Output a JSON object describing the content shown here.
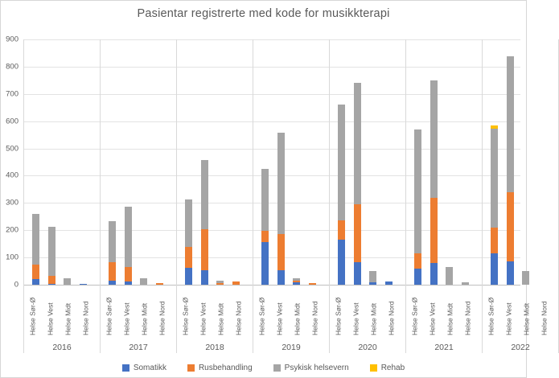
{
  "chart_data": {
    "type": "bar",
    "stacked": true,
    "title": "Pasientar registrerte med kode for musikkterapi",
    "ylim": [
      0,
      900
    ],
    "yticks": [
      0,
      100,
      200,
      300,
      400,
      500,
      600,
      700,
      800,
      900
    ],
    "grid": true,
    "legend_position": "bottom",
    "regions": [
      "Helse Sør-Ø",
      "Helse Vest",
      "Helse Midt",
      "Helse Nord"
    ],
    "series_names": [
      "Somatikk",
      "Rusbehandling",
      "Psykisk helsevern",
      "Rehab"
    ],
    "series_colors": [
      "#4472C4",
      "#ED7D31",
      "#A5A5A5",
      "#FFC000"
    ],
    "groups": [
      {
        "year": "2016",
        "values": [
          [
            20,
            55,
            185,
            0
          ],
          [
            3,
            30,
            180,
            0
          ],
          [
            0,
            0,
            25,
            0
          ],
          [
            4,
            0,
            0,
            0
          ]
        ]
      },
      {
        "year": "2017",
        "values": [
          [
            16,
            66,
            150,
            0
          ],
          [
            12,
            53,
            222,
            0
          ],
          [
            0,
            0,
            23,
            0
          ],
          [
            0,
            5,
            0,
            0
          ]
        ]
      },
      {
        "year": "2018",
        "values": [
          [
            62,
            76,
            175,
            0
          ],
          [
            53,
            150,
            255,
            0
          ],
          [
            0,
            6,
            9,
            0
          ],
          [
            0,
            12,
            0,
            0
          ]
        ]
      },
      {
        "year": "2019",
        "values": [
          [
            157,
            40,
            227,
            0
          ],
          [
            54,
            131,
            373,
            0
          ],
          [
            8,
            6,
            10,
            0
          ],
          [
            0,
            5,
            0,
            0
          ]
        ]
      },
      {
        "year": "2020",
        "values": [
          [
            165,
            70,
            425,
            0
          ],
          [
            82,
            214,
            444,
            0
          ],
          [
            8,
            0,
            42,
            0
          ],
          [
            12,
            0,
            0,
            0
          ]
        ]
      },
      {
        "year": "2021",
        "values": [
          [
            59,
            55,
            457,
            0
          ],
          [
            80,
            239,
            431,
            0
          ],
          [
            0,
            0,
            65,
            0
          ],
          [
            0,
            0,
            8,
            0
          ]
        ]
      },
      {
        "year": "2022",
        "values": [
          [
            116,
            94,
            363,
            12
          ],
          [
            87,
            253,
            497,
            0
          ],
          [
            0,
            0,
            50,
            0
          ],
          [
            0,
            0,
            0,
            0
          ]
        ]
      }
    ]
  },
  "colors": {
    "text": "#595959",
    "gridline": "#E3E3E3",
    "axis": "#BFBFBF",
    "separator": "#D9D9D9"
  }
}
